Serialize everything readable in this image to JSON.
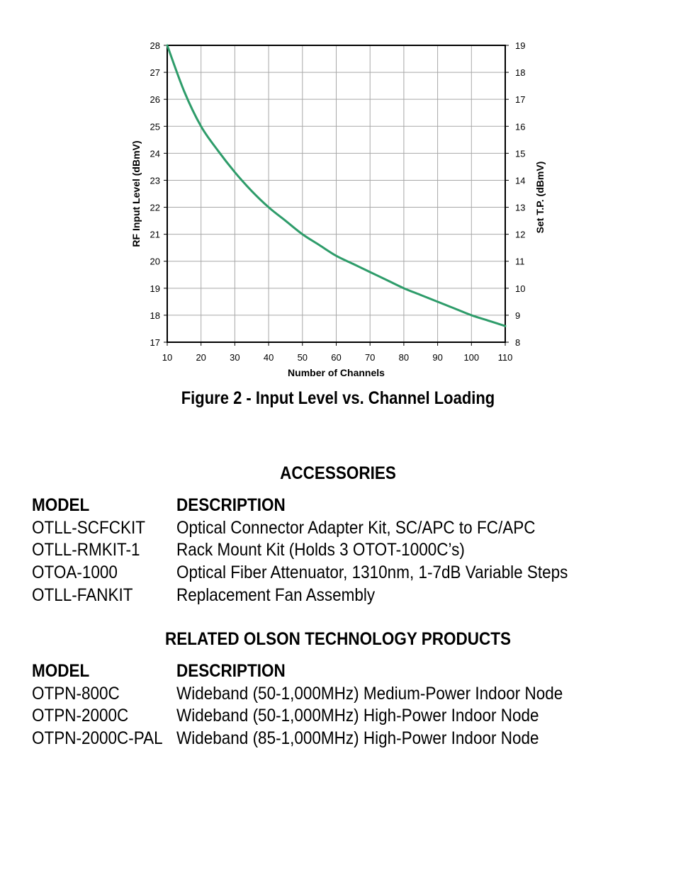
{
  "chart_data": {
    "type": "line",
    "xlabel": "Number of Channels",
    "ylabel": "RF Input Level (dBmV)",
    "y2label": "Set T.P. (dBmV)",
    "xlim": [
      10,
      110
    ],
    "ylim": [
      17,
      28
    ],
    "y2lim": [
      8,
      19
    ],
    "xticks": [
      10,
      20,
      30,
      40,
      50,
      60,
      70,
      80,
      90,
      100,
      110
    ],
    "yticks": [
      17,
      18,
      19,
      20,
      21,
      22,
      23,
      24,
      25,
      26,
      27,
      28
    ],
    "y2ticks": [
      8,
      9,
      10,
      11,
      12,
      13,
      14,
      15,
      16,
      17,
      18,
      19
    ],
    "grid": true,
    "legend": "none",
    "line_color": "#2e9c6a",
    "series": [
      {
        "x": [
          10,
          15,
          20,
          25,
          30,
          35,
          40,
          45,
          50,
          55,
          60,
          65,
          70,
          75,
          80,
          85,
          90,
          95,
          100,
          105,
          110
        ],
        "values": [
          28.0,
          26.3,
          25.0,
          24.1,
          23.3,
          22.6,
          22.0,
          21.5,
          21.0,
          20.6,
          20.2,
          19.9,
          19.6,
          19.3,
          19.0,
          18.75,
          18.5,
          18.25,
          18.0,
          17.8,
          17.6
        ]
      }
    ]
  },
  "figure_caption": "Figure 2 - Input Level vs. Channel Loading",
  "accessories": {
    "title": "ACCESSORIES",
    "header": {
      "model": "MODEL",
      "description": "DESCRIPTION"
    },
    "rows": [
      {
        "model": "OTLL-SCFCKIT",
        "description": "Optical Connector Adapter Kit, SC/APC to FC/APC"
      },
      {
        "model": "OTLL-RMKIT-1",
        "description": "Rack Mount Kit (Holds 3 OTOT-1000C’s)"
      },
      {
        "model": "OTOA-1000",
        "description": "Optical Fiber Attenuator, 1310nm, 1-7dB Variable Steps"
      },
      {
        "model": "OTLL-FANKIT",
        "description": "Replacement Fan Assembly"
      }
    ]
  },
  "related": {
    "title": "RELATED OLSON TECHNOLOGY PRODUCTS",
    "header": {
      "model": "MODEL",
      "description": "DESCRIPTION"
    },
    "rows": [
      {
        "model": "OTPN-800C",
        "description": "Wideband (50-1,000MHz) Medium-Power Indoor Node"
      },
      {
        "model": "OTPN-2000C",
        "description": "Wideband (50-1,000MHz) High-Power Indoor Node"
      },
      {
        "model": "OTPN-2000C-PAL",
        "description": "Wideband (85-1,000MHz) High-Power Indoor Node"
      }
    ]
  }
}
